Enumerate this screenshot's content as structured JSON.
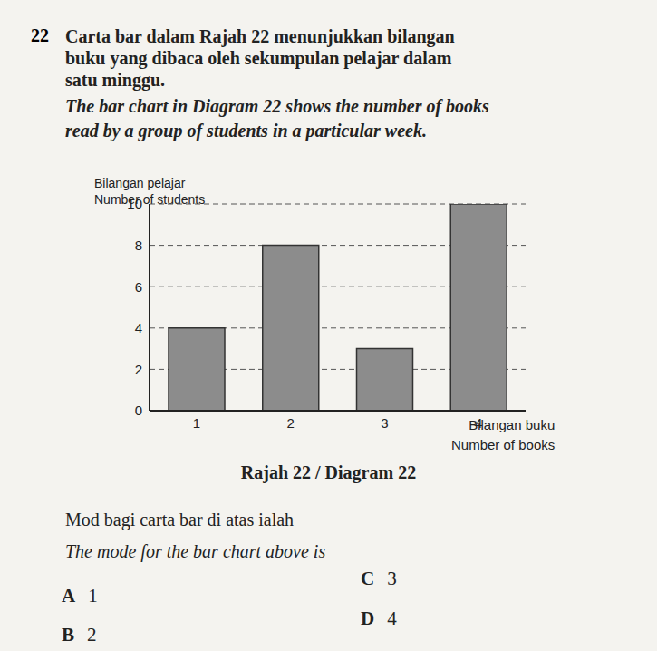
{
  "question": {
    "number": "22",
    "text_ms": [
      "Carta bar dalam Rajah 22 menunjukkan bilangan",
      "buku yang dibaca oleh sekumpulan pelajar dalam",
      "satu minggu."
    ],
    "text_en": [
      "The bar chart in Diagram 22 shows the number of books",
      "read by a group of students in a particular week."
    ]
  },
  "chart_data": {
    "type": "bar",
    "categories": [
      "1",
      "2",
      "3",
      "4"
    ],
    "values": [
      4,
      8,
      3,
      10
    ],
    "color": "#8c8c8c",
    "ylim": [
      0,
      10
    ],
    "yticks": [
      0,
      2,
      4,
      6,
      8,
      10
    ],
    "grid": true,
    "ylabel": [
      "Bilangan pelajar",
      "Number of students"
    ],
    "xlabel": [
      "Bilangan buku",
      "Number of books"
    ]
  },
  "caption": "Rajah 22 / Diagram 22",
  "prompt_ms": "Mod bagi carta bar di atas ialah",
  "prompt_en": "The mode for the bar chart above is",
  "options": [
    {
      "letter": "A",
      "text": "1"
    },
    {
      "letter": "B",
      "text": "2"
    },
    {
      "letter": "C",
      "text": "3"
    },
    {
      "letter": "D",
      "text": "4"
    }
  ]
}
